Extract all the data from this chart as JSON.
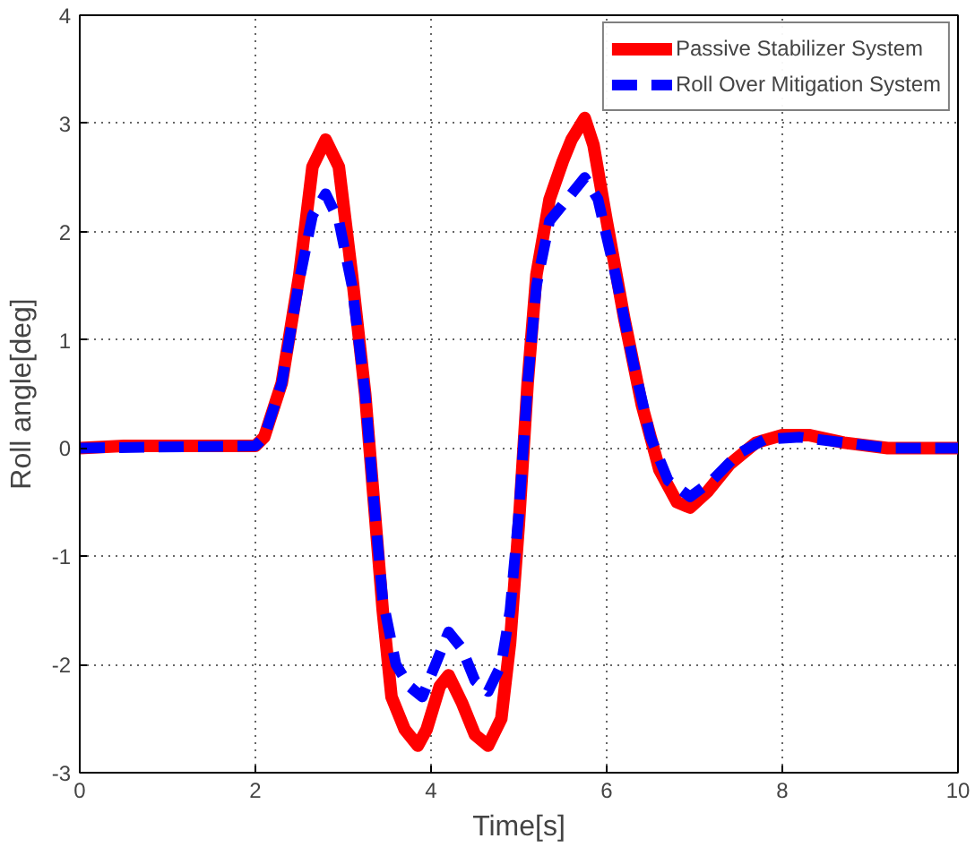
{
  "chart_data": {
    "type": "line",
    "xlabel": "Time[s]",
    "ylabel": "Roll angle[deg]",
    "xlim": [
      0,
      10
    ],
    "ylim": [
      -3,
      4
    ],
    "xticks": [
      0,
      2,
      4,
      6,
      8,
      10
    ],
    "yticks": [
      -3,
      -2,
      -1,
      0,
      1,
      2,
      3,
      4
    ],
    "grid": true,
    "legend": "top right",
    "marker": "none",
    "series": [
      {
        "name": "Passive Stabilizer System",
        "color": "#ff0000",
        "line_style": "solid",
        "x": [
          0,
          0.5,
          1.5,
          2.0,
          2.1,
          2.3,
          2.5,
          2.65,
          2.8,
          2.95,
          3.1,
          3.25,
          3.35,
          3.45,
          3.55,
          3.7,
          3.85,
          3.95,
          4.1,
          4.2,
          4.35,
          4.5,
          4.65,
          4.8,
          4.9,
          5.0,
          5.1,
          5.2,
          5.35,
          5.5,
          5.6,
          5.75,
          5.85,
          6.0,
          6.2,
          6.4,
          6.6,
          6.8,
          6.95,
          7.15,
          7.4,
          7.7,
          8.0,
          8.3,
          8.7,
          9.2,
          10
        ],
        "values": [
          0,
          0.02,
          0.02,
          0.02,
          0.1,
          0.6,
          1.6,
          2.6,
          2.85,
          2.6,
          1.6,
          0.5,
          -0.5,
          -1.5,
          -2.3,
          -2.6,
          -2.75,
          -2.6,
          -2.2,
          -2.1,
          -2.35,
          -2.65,
          -2.75,
          -2.5,
          -1.8,
          -0.7,
          0.6,
          1.6,
          2.3,
          2.65,
          2.85,
          3.05,
          2.8,
          2.1,
          1.2,
          0.4,
          -0.2,
          -0.5,
          -0.55,
          -0.4,
          -0.15,
          0.05,
          0.12,
          0.12,
          0.05,
          0,
          0
        ]
      },
      {
        "name": "Roll Over Mitigation System",
        "color": "#0000ff",
        "line_style": "dashed",
        "x": [
          0,
          2.0,
          2.1,
          2.3,
          2.5,
          2.65,
          2.8,
          2.95,
          3.1,
          3.25,
          3.35,
          3.45,
          3.6,
          3.75,
          3.9,
          4.05,
          4.2,
          4.35,
          4.5,
          4.65,
          4.8,
          4.9,
          5.0,
          5.1,
          5.2,
          5.35,
          5.5,
          5.75,
          5.9,
          6.1,
          6.3,
          6.5,
          6.7,
          6.95,
          7.2,
          7.5,
          7.8,
          8.2,
          8.7,
          9.2,
          10
        ],
        "values": [
          0,
          0.02,
          0.1,
          0.6,
          1.55,
          2.15,
          2.35,
          2.1,
          1.5,
          0.5,
          -0.5,
          -1.4,
          -2.0,
          -2.2,
          -2.3,
          -2.0,
          -1.7,
          -1.85,
          -2.15,
          -2.25,
          -2.0,
          -1.5,
          -0.6,
          0.6,
          1.5,
          2.1,
          2.25,
          2.5,
          2.3,
          1.6,
          0.8,
          0.1,
          -0.3,
          -0.45,
          -0.3,
          -0.05,
          0.08,
          0.1,
          0.05,
          0,
          0
        ]
      }
    ]
  }
}
